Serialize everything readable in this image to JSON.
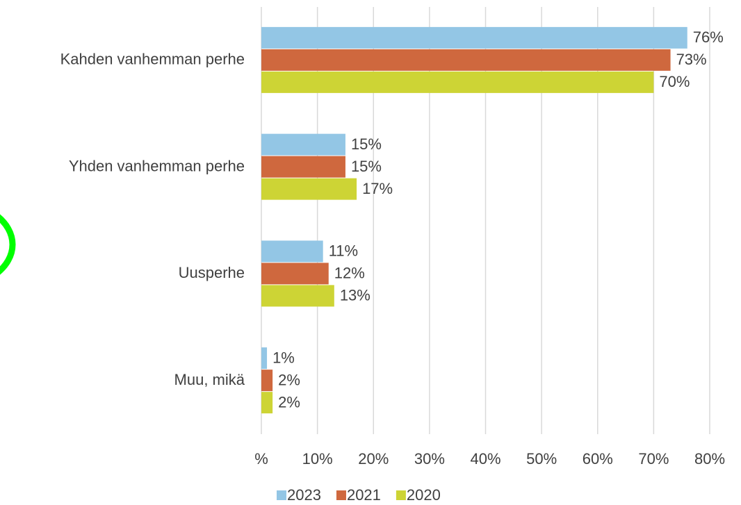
{
  "chart_data": {
    "type": "bar",
    "orientation": "horizontal",
    "categories": [
      "Kahden vanhemman perhe",
      "Yhden vanhemman perhe",
      "Uusperhe",
      "Muu, mikä"
    ],
    "series": [
      {
        "name": "2023",
        "color": "#93c6e5",
        "values": [
          76,
          15,
          11,
          1
        ],
        "value_labels": [
          "76%",
          "15%",
          "11%",
          "1%"
        ]
      },
      {
        "name": "2021",
        "color": "#cf683e",
        "values": [
          73,
          15,
          12,
          2
        ],
        "value_labels": [
          "73%",
          "15%",
          "12%",
          "2%"
        ]
      },
      {
        "name": "2020",
        "color": "#cdd435",
        "values": [
          70,
          17,
          13,
          2
        ],
        "value_labels": [
          "70%",
          "17%",
          "13%",
          "2%"
        ]
      }
    ],
    "xlim": [
      0,
      80
    ],
    "xticks": [
      {
        "value": 0,
        "label": "%"
      },
      {
        "value": 10,
        "label": "10%"
      },
      {
        "value": 20,
        "label": "20%"
      },
      {
        "value": 30,
        "label": "30%"
      },
      {
        "value": 40,
        "label": "40%"
      },
      {
        "value": 50,
        "label": "50%"
      },
      {
        "value": 60,
        "label": "60%"
      },
      {
        "value": 70,
        "label": "70%"
      },
      {
        "value": 80,
        "label": "80%"
      }
    ],
    "grid": true,
    "legend": "bottom"
  }
}
